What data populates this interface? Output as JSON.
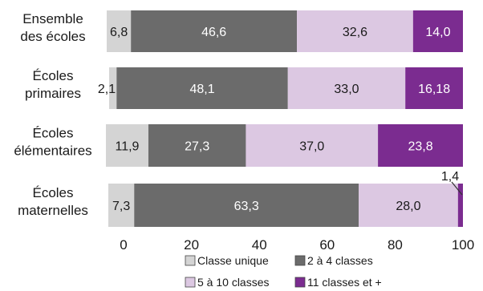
{
  "chart_data": {
    "type": "bar",
    "orientation": "horizontal",
    "stacked": true,
    "categories": [
      [
        "Ensemble",
        "des écoles"
      ],
      [
        "Écoles",
        "primaires"
      ],
      [
        "Écoles",
        "élémentaires"
      ],
      [
        "Écoles",
        "maternelles"
      ]
    ],
    "series": [
      {
        "name": "Classe unique",
        "color": "#d4d4d4",
        "text_color": "#1a1a1a",
        "values": [
          6.8,
          2.1,
          11.9,
          7.3
        ],
        "labels": [
          "6,8",
          "2,1",
          "11,9",
          "7,3"
        ]
      },
      {
        "name": "2 à 4 classes",
        "color": "#6b6b6b",
        "text_color": "#ffffff",
        "values": [
          46.6,
          48.1,
          27.3,
          63.3
        ],
        "labels": [
          "46,6",
          "48,1",
          "27,3",
          "63,3"
        ]
      },
      {
        "name": "5 à 10 classes",
        "color": "#dcc8e2",
        "text_color": "#1a1a1a",
        "values": [
          32.6,
          33.0,
          37.0,
          28.0
        ],
        "labels": [
          "32,6",
          "33,0",
          "37,0",
          "28,0"
        ]
      },
      {
        "name": "11 classes et +",
        "color": "#7b2c90",
        "text_color": "#ffffff",
        "values": [
          14.0,
          16.18,
          23.8,
          1.4
        ],
        "labels": [
          "14,0",
          "16,18",
          "23,8",
          "1,4"
        ]
      }
    ],
    "xlim": [
      0,
      100
    ],
    "xticks": [
      "0",
      "20",
      "40",
      "60",
      "80",
      "100"
    ],
    "title": "",
    "xlabel": "",
    "ylabel": "",
    "grid": false,
    "legend_position": "bottom"
  }
}
